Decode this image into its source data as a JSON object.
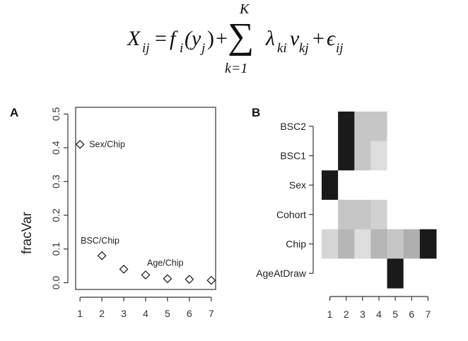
{
  "equation": {
    "lhs": "X",
    "lhs_sub": "ij",
    "equals": "=",
    "f": "f",
    "f_sub": "i",
    "f_arg_open": "(y",
    "f_arg_sub": "j",
    "f_arg_close": ")",
    "plus1": "+",
    "sum_symbol": "∑",
    "sum_upper": "K",
    "sum_lower": "k=1",
    "lambda": "λ",
    "lambda_sub": "ki",
    "v": "v",
    "v_sub": "kj",
    "plus2": "+",
    "eps": "ϵ",
    "eps_sub": "ij"
  },
  "chart_data": [
    {
      "type": "scatter",
      "panel_label": "A",
      "ylabel": "fracVar",
      "x": [
        1,
        2,
        3,
        4,
        5,
        6,
        7
      ],
      "y": [
        0.41,
        0.08,
        0.04,
        0.023,
        0.012,
        0.01,
        0.007
      ],
      "xticks": [
        1,
        2,
        3,
        4,
        5,
        6,
        7
      ],
      "yticks": [
        0.0,
        0.1,
        0.2,
        0.3,
        0.4,
        0.5
      ],
      "ytick_labels": [
        "0.0",
        "0.1",
        "0.2",
        "0.3",
        "0.4",
        "0.5"
      ],
      "xlim": [
        0.8,
        7.2
      ],
      "ylim": [
        -0.02,
        0.52
      ],
      "marker": "diamond",
      "annotations": [
        {
          "text": "Sex/Chip",
          "x": 1,
          "y": 0.41
        },
        {
          "text": "BSC/Chip",
          "x": 2,
          "y": 0.08
        },
        {
          "text": "Age/Chip",
          "x": 4,
          "y": 0.023
        }
      ]
    },
    {
      "type": "heatmap",
      "panel_label": "B",
      "rows": [
        "BSC2",
        "BSC1",
        "Sex",
        "Cohort",
        "Chip",
        "AgeAtDraw"
      ],
      "columns": [
        "1",
        "2",
        "3",
        "4",
        "5",
        "6",
        "7"
      ],
      "color_scale": {
        "low": "#ffffff",
        "high": "#1a1a1a"
      },
      "values": [
        [
          0,
          1,
          0.25,
          0.25,
          0,
          0,
          0
        ],
        [
          0,
          1,
          0.25,
          0.15,
          0,
          0,
          0
        ],
        [
          1,
          0,
          0,
          0,
          0,
          0,
          0
        ],
        [
          0,
          0.25,
          0.25,
          0.2,
          0,
          0,
          0
        ],
        [
          0.18,
          0.32,
          0.15,
          0.32,
          0.25,
          0.35,
          1
        ],
        [
          0,
          0,
          0,
          0,
          1,
          0,
          0
        ]
      ]
    }
  ]
}
